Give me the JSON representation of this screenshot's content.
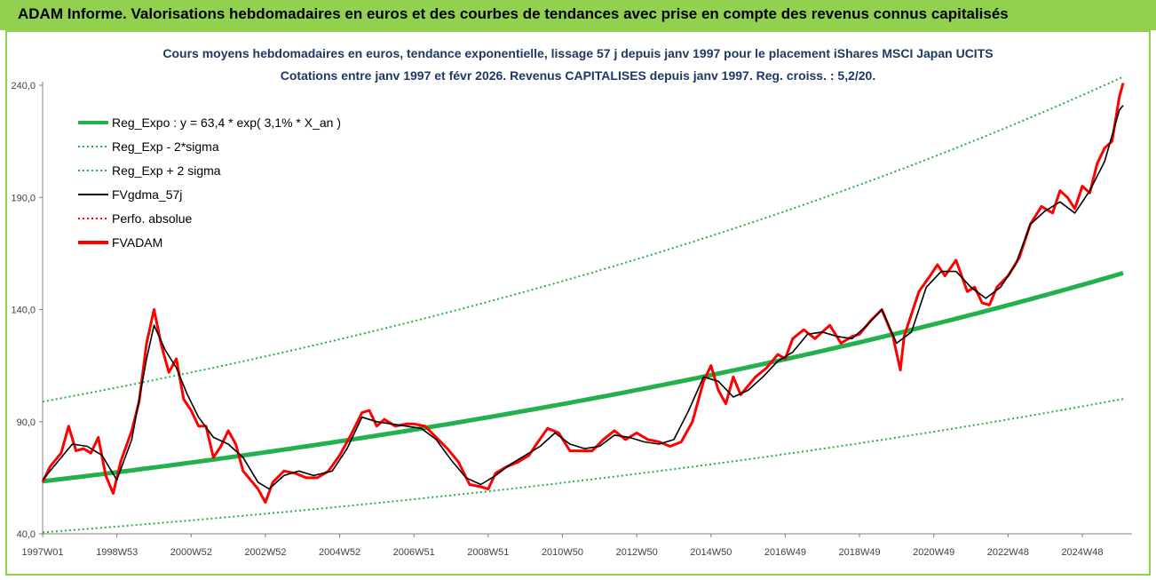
{
  "header": {
    "title": "ADAM Informe. Valorisations hebdomadaires en euros et des courbes de tendances avec prise en compte des revenus connus capitalisés"
  },
  "colors": {
    "header_bg": "#92d050",
    "title_text": "#1f3864",
    "reg_expo": "#22b14c",
    "fvgdma": "#000000",
    "fvadam": "#ff0000",
    "perfo": "#ff0000"
  },
  "chart_data": {
    "type": "line",
    "title": "Cours moyens hebdomadaires en euros, tendance exponentielle, lissage 57 j depuis janv 1997 pour le placement iShares MSCI Japan UCITS",
    "subtitle": "Cotations entre janv 1997 et févr 2026. Revenus CAPITALISES depuis janv 1997. Reg. croiss. : 5,2/20.",
    "xlabel": "",
    "ylabel": "",
    "x_ticks": [
      "1997W01",
      "1998W53",
      "2000W52",
      "2002W52",
      "2004W52",
      "2006W51",
      "2008W51",
      "2010W50",
      "2012W50",
      "2014W50",
      "2016W49",
      "2018W49",
      "2020W49",
      "2022W48",
      "2024W48"
    ],
    "x_tick_years": [
      1997.0,
      1999.0,
      2001.0,
      2003.0,
      2005.0,
      2007.0,
      2009.0,
      2011.0,
      2013.0,
      2015.0,
      2017.0,
      2019.0,
      2021.0,
      2023.0,
      2025.0
    ],
    "xlim": [
      1997.0,
      2026.1
    ],
    "y_ticks": [
      "40,0",
      "90,0",
      "140,0",
      "190,0",
      "240,0"
    ],
    "ylim": [
      40,
      240
    ],
    "grid": false,
    "legend_position": "top-left",
    "regression": {
      "a": 63.4,
      "rate": 0.031,
      "sigma_factor": 1.56
    },
    "legend": [
      {
        "name": "Reg_Expo : y = 63,4 * exp( 3,1% * X_an )",
        "style": "thick-solid",
        "color": "#22b14c"
      },
      {
        "name": "Reg_Exp - 2*sigma",
        "style": "dotted",
        "color": "#22b14c"
      },
      {
        "name": "Reg_Exp + 2 sigma",
        "style": "dotted",
        "color": "#22b14c"
      },
      {
        "name": "FVgdma_57j",
        "style": "solid",
        "color": "#000000"
      },
      {
        "name": "Perfo. absolue",
        "style": "dotted",
        "color": "#ff0000"
      },
      {
        "name": "FVADAM",
        "style": "thick-solid",
        "color": "#ff0000"
      }
    ],
    "series": [
      {
        "name": "FVADAM",
        "x": [
          1997.0,
          1997.2,
          1997.5,
          1997.7,
          1997.9,
          1998.1,
          1998.3,
          1998.5,
          1998.7,
          1998.9,
          1999.1,
          1999.4,
          1999.6,
          1999.8,
          2000.0,
          2000.2,
          2000.4,
          2000.6,
          2000.8,
          2001.0,
          2001.2,
          2001.4,
          2001.6,
          2001.8,
          2002.0,
          2002.2,
          2002.4,
          2002.6,
          2002.8,
          2003.0,
          2003.2,
          2003.5,
          2003.8,
          2004.1,
          2004.4,
          2004.7,
          2005.0,
          2005.3,
          2005.6,
          2005.8,
          2006.0,
          2006.2,
          2006.5,
          2006.8,
          2007.0,
          2007.3,
          2007.6,
          2007.9,
          2008.2,
          2008.5,
          2008.8,
          2009.0,
          2009.2,
          2009.5,
          2009.8,
          2010.1,
          2010.3,
          2010.6,
          2010.9,
          2011.2,
          2011.5,
          2011.8,
          2012.1,
          2012.4,
          2012.7,
          2013.0,
          2013.3,
          2013.6,
          2013.9,
          2014.2,
          2014.5,
          2014.8,
          2015.0,
          2015.2,
          2015.4,
          2015.6,
          2015.8,
          2016.0,
          2016.2,
          2016.5,
          2016.8,
          2017.0,
          2017.2,
          2017.5,
          2017.8,
          2018.0,
          2018.2,
          2018.5,
          2018.8,
          2019.0,
          2019.3,
          2019.6,
          2019.9,
          2020.1,
          2020.2,
          2020.4,
          2020.6,
          2020.9,
          2021.1,
          2021.3,
          2021.6,
          2021.9,
          2022.1,
          2022.3,
          2022.5,
          2022.7,
          2023.0,
          2023.3,
          2023.6,
          2023.9,
          2024.2,
          2024.4,
          2024.6,
          2024.8,
          2025.0,
          2025.2,
          2025.4,
          2025.6,
          2025.8,
          2026.0,
          2026.1
        ],
        "values": [
          63,
          70,
          76,
          88,
          77,
          78,
          76,
          83,
          66,
          58,
          72,
          86,
          99,
          125,
          140,
          124,
          112,
          118,
          100,
          95,
          88,
          88,
          74,
          79,
          86,
          80,
          68,
          64,
          60,
          54,
          63,
          68,
          67,
          65,
          65,
          68,
          75,
          84,
          94,
          95,
          88,
          91,
          88,
          89,
          89,
          88,
          83,
          78,
          72,
          62,
          61,
          60,
          67,
          70,
          72,
          75,
          80,
          87,
          85,
          77,
          77,
          77,
          82,
          86,
          82,
          85,
          82,
          81,
          79,
          81,
          90,
          108,
          115,
          104,
          98,
          110,
          102,
          106,
          110,
          114,
          120,
          118,
          127,
          131,
          127,
          130,
          133,
          125,
          128,
          129,
          135,
          140,
          128,
          113,
          128,
          138,
          148,
          155,
          160,
          155,
          162,
          148,
          150,
          143,
          142,
          150,
          155,
          163,
          178,
          186,
          183,
          193,
          190,
          185,
          195,
          192,
          205,
          212,
          215,
          235,
          241
        ]
      },
      {
        "name": "FVgdma_57j",
        "x": [
          1997.0,
          1997.4,
          1997.8,
          1998.2,
          1998.6,
          1999.0,
          1999.4,
          1999.8,
          2000.0,
          2000.3,
          2000.6,
          2000.9,
          2001.2,
          2001.6,
          2002.0,
          2002.4,
          2002.8,
          2003.1,
          2003.5,
          2003.9,
          2004.3,
          2004.8,
          2005.2,
          2005.6,
          2006.0,
          2006.4,
          2006.8,
          2007.2,
          2007.6,
          2008.0,
          2008.4,
          2008.8,
          2009.2,
          2009.6,
          2010.0,
          2010.4,
          2010.8,
          2011.2,
          2011.6,
          2012.0,
          2012.4,
          2012.8,
          2013.2,
          2013.6,
          2014.0,
          2014.4,
          2014.8,
          2015.2,
          2015.6,
          2016.0,
          2016.4,
          2016.8,
          2017.2,
          2017.6,
          2018.0,
          2018.4,
          2018.8,
          2019.2,
          2019.6,
          2020.0,
          2020.4,
          2020.8,
          2021.2,
          2021.6,
          2022.0,
          2022.4,
          2022.8,
          2023.2,
          2023.6,
          2024.0,
          2024.4,
          2024.8,
          2025.2,
          2025.6,
          2026.0,
          2026.1
        ],
        "values": [
          64,
          72,
          80,
          79,
          75,
          64,
          82,
          118,
          133,
          122,
          114,
          102,
          92,
          83,
          80,
          74,
          63,
          60,
          66,
          68,
          66,
          68,
          78,
          92,
          90,
          89,
          88,
          87,
          82,
          73,
          65,
          62,
          66,
          71,
          75,
          79,
          85,
          80,
          78,
          79,
          84,
          83,
          81,
          80,
          82,
          95,
          110,
          108,
          101,
          104,
          110,
          117,
          121,
          129,
          130,
          128,
          127,
          133,
          140,
          125,
          130,
          150,
          157,
          157,
          150,
          145,
          150,
          160,
          178,
          184,
          188,
          183,
          193,
          206,
          229,
          231
        ]
      }
    ]
  }
}
